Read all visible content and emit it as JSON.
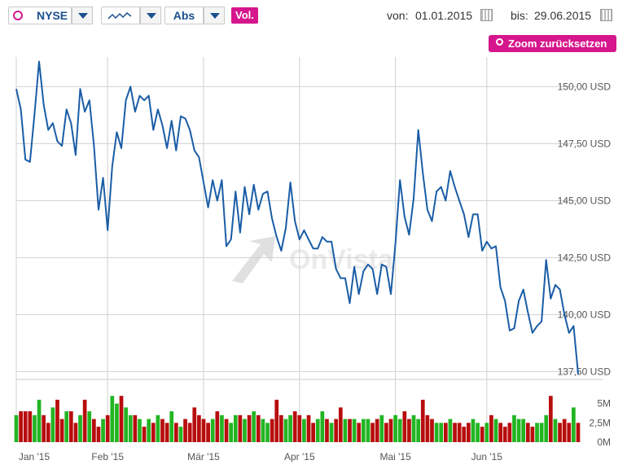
{
  "controls": {
    "exchange": "NYSE",
    "scale": "Abs",
    "volume": "Vol.",
    "from_label": "von:",
    "from_date": "01.01.2015",
    "to_label": "bis:",
    "to_date": "29.06.2015",
    "zoom_reset": "Zoom zurücksetzen"
  },
  "watermark": "OnVista",
  "chart_data": {
    "type": "line",
    "color": "#1a5da6",
    "grid": true,
    "values": [
      149.9,
      149.0,
      146.8,
      146.7,
      148.8,
      151.1,
      149.2,
      148.1,
      148.4,
      147.6,
      147.4,
      149.0,
      148.4,
      147.0,
      149.9,
      148.9,
      149.4,
      147.4,
      144.6,
      146.0,
      143.7,
      146.5,
      148.0,
      147.3,
      149.4,
      150.0,
      148.9,
      149.6,
      149.4,
      149.6,
      148.1,
      149.0,
      148.3,
      147.3,
      148.5,
      147.2,
      148.7,
      148.6,
      148.1,
      147.2,
      146.9,
      145.8,
      144.7,
      145.9,
      145.0,
      145.9,
      143.0,
      143.3,
      145.4,
      143.6,
      145.6,
      144.4,
      145.7,
      144.6,
      145.3,
      145.4,
      144.2,
      143.4,
      142.8,
      143.8,
      145.8,
      144.1,
      143.3,
      143.7,
      143.3,
      142.9,
      142.9,
      143.4,
      143.2,
      143.2,
      142.0,
      141.6,
      141.6,
      140.5,
      142.1,
      140.9,
      141.9,
      142.2,
      142.0,
      140.9,
      142.2,
      142.1,
      140.9,
      143.1,
      145.9,
      144.3,
      143.5,
      145.1,
      148.1,
      146.2,
      144.6,
      144.1,
      145.4,
      145.6,
      145.0,
      146.3,
      145.6,
      145.0,
      144.4,
      143.4,
      144.4,
      144.4,
      142.8,
      143.2,
      142.9,
      143.0,
      141.2,
      140.6,
      139.3,
      139.4,
      140.6,
      141.1,
      140.1,
      139.2,
      139.5,
      139.7,
      142.4,
      140.7,
      141.3,
      141.1,
      140.0,
      139.2,
      139.5,
      137.4
    ],
    "ylim": [
      137.3,
      151.3
    ],
    "yticks": [
      {
        "value": 137.5,
        "label": "137,50 USD"
      },
      {
        "value": 140,
        "label": "140,00 USD"
      },
      {
        "value": 142.5,
        "label": "142,50 USD"
      },
      {
        "value": 145,
        "label": "145,00 USD"
      },
      {
        "value": 147.5,
        "label": "147,50 USD"
      },
      {
        "value": 150,
        "label": "150,00 USD"
      }
    ],
    "xticks": [
      {
        "value": 0,
        "label": "Jan '15"
      },
      {
        "value": 20,
        "label": "Feb '15"
      },
      {
        "value": 41,
        "label": "Mär '15"
      },
      {
        "value": 62,
        "label": "Apr '15"
      },
      {
        "value": 83,
        "label": "Mai '15"
      },
      {
        "value": 103,
        "label": "Jun '15"
      }
    ],
    "volume": [
      3.5,
      4,
      4,
      4,
      3.5,
      5.5,
      3.5,
      2.5,
      4.5,
      5.5,
      3,
      4,
      4,
      2.5,
      3.5,
      5.5,
      4,
      3,
      2,
      3,
      3.5,
      6,
      5,
      6,
      4.5,
      3.5,
      3.5,
      3,
      2,
      3,
      2.5,
      3.5,
      3,
      2.5,
      4,
      2.5,
      2,
      3,
      2.5,
      4.5,
      3.5,
      3,
      2.5,
      3,
      4,
      3.5,
      3,
      2.5,
      3.5,
      3.5,
      3,
      3.5,
      4,
      3.5,
      3,
      2.5,
      3,
      5.5,
      3.5,
      3,
      3.5,
      4,
      3.5,
      3,
      3.5,
      2.5,
      3,
      4,
      3,
      2.5,
      3,
      4.5,
      3,
      3,
      3,
      2.5,
      3,
      3,
      2.5,
      3,
      3.5,
      2.5,
      3,
      3.5,
      3,
      4,
      3,
      3.5,
      3,
      5.5,
      3.5,
      3,
      2.5,
      2.5,
      2.5,
      3,
      2.5,
      2.5,
      2,
      2.5,
      3,
      2.5,
      2,
      2.5,
      3.5,
      3,
      2.5,
      2,
      2.5,
      3.5,
      3,
      3,
      2.5,
      2,
      2.5,
      2.5,
      3.5,
      6,
      3,
      2.5,
      3,
      2.5,
      4.5,
      2.5
    ],
    "volume_up_color": "#22b522",
    "volume_down_color": "#b80d0d",
    "y2lim": [
      0,
      7.5
    ],
    "y2ticks": [
      {
        "value": 0,
        "label": "0M"
      },
      {
        "value": 2.5,
        "label": "2,5M"
      },
      {
        "value": 5,
        "label": "5M"
      }
    ]
  }
}
